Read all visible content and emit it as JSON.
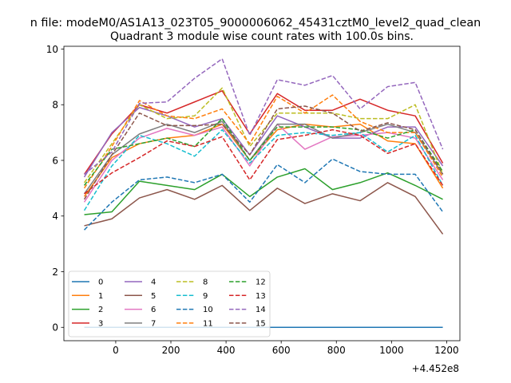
{
  "figure": {
    "suptitle": "n file: modeM0/AS1A13_023T05_9000006062_45431cztM0_level2_quad_clean",
    "title": "Quadrant 3 module wise count rates with 100.0s bins."
  },
  "chart_data": {
    "type": "line",
    "title": "Quadrant 3 module wise count rates with 100.0s bins.",
    "xlabel": "",
    "ylabel": "",
    "x_offset_label": "+4.452e8",
    "x_offset": 445200000,
    "xlim": [
      -188,
      1248
    ],
    "ylim": [
      -0.48,
      10.1
    ],
    "xticks": [
      0,
      200,
      400,
      600,
      800,
      1000,
      1200
    ],
    "yticks": [
      0,
      2,
      4,
      6,
      8,
      10
    ],
    "grid": false,
    "legend": {
      "placement": "lower-left",
      "columns": 4
    },
    "x": [
      -114,
      -14,
      86,
      186,
      286,
      386,
      486,
      586,
      686,
      786,
      886,
      986,
      1086,
      1186
    ],
    "series": [
      {
        "name": "0",
        "color": "#1f77b4",
        "dash": "solid",
        "values": [
          0,
          0,
          0,
          0,
          0,
          0,
          0,
          0,
          0,
          0,
          0,
          0,
          0,
          0
        ]
      },
      {
        "name": "1",
        "color": "#ff7f0e",
        "dash": "solid",
        "values": [
          4.7,
          6.1,
          6.6,
          6.8,
          6.9,
          7.3,
          6.0,
          7.1,
          7.3,
          7.2,
          7.3,
          6.7,
          6.6,
          5.0
        ]
      },
      {
        "name": "2",
        "color": "#2ca02c",
        "dash": "solid",
        "values": [
          4.05,
          4.15,
          5.25,
          5.1,
          4.95,
          5.5,
          4.7,
          5.4,
          5.7,
          4.95,
          5.2,
          5.55,
          5.1,
          4.6
        ]
      },
      {
        "name": "3",
        "color": "#d62728",
        "dash": "solid",
        "values": [
          5.5,
          6.95,
          8.0,
          7.7,
          8.1,
          8.5,
          6.95,
          8.4,
          7.8,
          7.8,
          8.2,
          7.8,
          7.6,
          5.9
        ]
      },
      {
        "name": "4",
        "color": "#9467bd",
        "dash": "solid",
        "values": [
          5.4,
          7.0,
          7.9,
          7.6,
          7.2,
          7.5,
          6.2,
          7.6,
          7.2,
          6.8,
          6.8,
          7.2,
          7.2,
          5.8
        ]
      },
      {
        "name": "5",
        "color": "#8c564b",
        "dash": "solid",
        "values": [
          3.65,
          3.9,
          4.65,
          4.95,
          4.6,
          5.1,
          4.2,
          5.0,
          4.45,
          4.8,
          4.55,
          5.2,
          4.7,
          3.35
        ]
      },
      {
        "name": "6",
        "color": "#e377c2",
        "dash": "solid",
        "values": [
          4.5,
          6.0,
          6.8,
          7.15,
          6.9,
          7.2,
          5.8,
          7.3,
          6.4,
          6.85,
          6.9,
          7.0,
          6.8,
          5.3
        ]
      },
      {
        "name": "7",
        "color": "#7f7f7f",
        "dash": "solid",
        "values": [
          4.8,
          6.2,
          6.95,
          7.3,
          7.0,
          7.4,
          6.0,
          7.3,
          7.3,
          6.8,
          7.0,
          7.3,
          7.0,
          5.5
        ]
      },
      {
        "name": "8",
        "color": "#bcbd22",
        "dash": "dashed",
        "values": [
          5.2,
          6.6,
          8.0,
          7.5,
          7.6,
          8.6,
          6.5,
          7.7,
          7.7,
          7.7,
          7.5,
          7.5,
          8.0,
          5.5
        ]
      },
      {
        "name": "9",
        "color": "#17becf",
        "dash": "dashed",
        "values": [
          4.2,
          5.8,
          6.9,
          6.6,
          6.15,
          7.1,
          5.9,
          6.9,
          7.0,
          6.9,
          7.0,
          6.3,
          6.9,
          5.1
        ]
      },
      {
        "name": "10",
        "color": "#1f77b4",
        "dash": "dashed",
        "values": [
          3.5,
          4.5,
          5.3,
          5.4,
          5.2,
          5.5,
          4.5,
          5.85,
          5.2,
          6.05,
          5.6,
          5.5,
          5.5,
          4.15
        ]
      },
      {
        "name": "11",
        "color": "#ff7f0e",
        "dash": "dashed",
        "values": [
          5.0,
          6.5,
          8.15,
          7.6,
          7.5,
          7.85,
          6.6,
          8.3,
          7.7,
          8.35,
          7.4,
          7.0,
          7.0,
          5.4
        ]
      },
      {
        "name": "12",
        "color": "#2ca02c",
        "dash": "dashed",
        "values": [
          5.1,
          6.4,
          6.6,
          6.8,
          6.5,
          7.5,
          6.0,
          7.2,
          7.2,
          7.2,
          7.1,
          6.8,
          7.1,
          5.6
        ]
      },
      {
        "name": "13",
        "color": "#d62728",
        "dash": "dashed",
        "values": [
          4.8,
          5.55,
          6.1,
          6.7,
          6.5,
          6.85,
          5.3,
          6.75,
          6.9,
          7.1,
          6.9,
          6.25,
          6.6,
          5.1
        ]
      },
      {
        "name": "14",
        "color": "#9467bd",
        "dash": "dashed",
        "values": [
          5.5,
          6.3,
          8.05,
          8.1,
          8.95,
          9.65,
          6.9,
          8.9,
          8.7,
          9.05,
          7.85,
          8.65,
          8.8,
          6.4
        ]
      },
      {
        "name": "15",
        "color": "#8c564b",
        "dash": "dashed",
        "values": [
          4.6,
          6.2,
          7.7,
          7.25,
          7.25,
          7.3,
          6.2,
          7.85,
          7.95,
          7.7,
          7.05,
          7.35,
          7.1,
          5.5
        ]
      }
    ]
  }
}
